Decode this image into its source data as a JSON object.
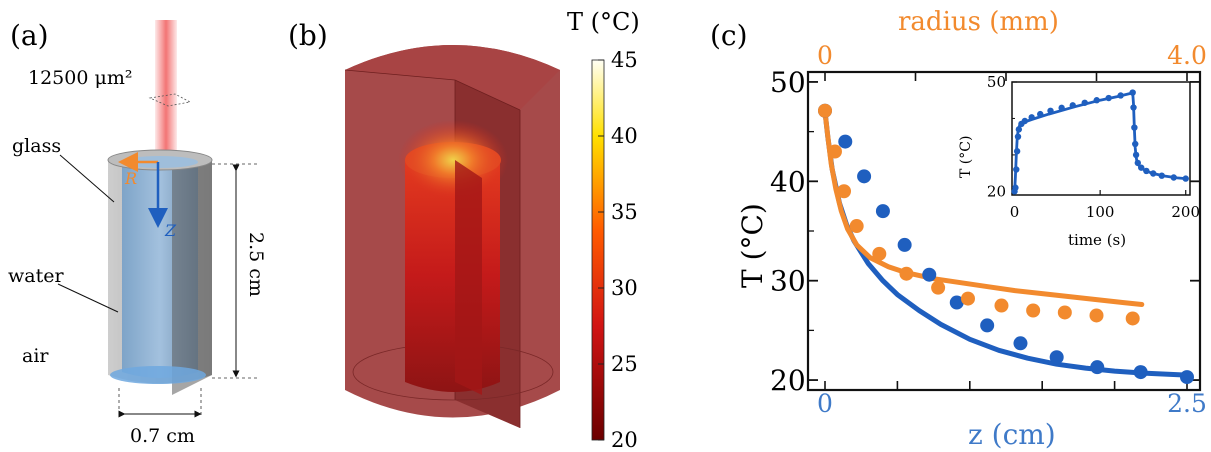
{
  "panel_a": {
    "label": "(a)",
    "area_label": "12500 μm²",
    "glass_label": "glass",
    "water_label": "water",
    "air_label": "air",
    "r_axis_label": "R",
    "z_axis_label": "Z",
    "height_label": "2.5 cm",
    "width_label": "0.7 cm",
    "colors": {
      "laser": "#f26d6d",
      "water": "#8db3d6",
      "glass": "#9a9a9a",
      "r_arrow": "#f28a2e",
      "z_arrow": "#1f5fbf"
    }
  },
  "panel_b": {
    "label": "(b)",
    "colorbar_title": "T (°C)",
    "colorbar_ticks": [
      "45",
      "40",
      "35",
      "30",
      "25",
      "20"
    ],
    "colors": {
      "outer": "#9e3b3b",
      "hot": "#e8c43a",
      "core": "#d81f1f"
    }
  },
  "panel_c": {
    "label": "(c)",
    "top_axis_label": "radius (mm)",
    "bottom_axis_label": "z (cm)",
    "y_axis_label": "T (°C)",
    "top_ticks": [
      "0",
      "4.0"
    ],
    "bottom_ticks": [
      "0",
      "2.5"
    ],
    "y_ticks": [
      "50",
      "40",
      "30",
      "20"
    ],
    "inset": {
      "y_label": "T (°C)",
      "x_label": "time (s)",
      "x_ticks": [
        "0",
        "100",
        "200"
      ],
      "y_ticks": [
        "50",
        "20"
      ]
    },
    "colors": {
      "blue": "#1f5fbf",
      "orange": "#f28a2e"
    }
  },
  "chart_data": [
    {
      "type": "scatter",
      "xlabel": "z (cm)",
      "x2label": "radius (mm)",
      "ylabel": "T (°C)",
      "xlim": [
        0,
        2.5
      ],
      "x2lim": [
        0,
        4.0
      ],
      "ylim": [
        19,
        51
      ],
      "series": [
        {
          "axis": "bottom",
          "kind": "points",
          "x": [
            0.0,
            0.14,
            0.27,
            0.4,
            0.55,
            0.72,
            0.91,
            1.12,
            1.35,
            1.6,
            1.88,
            2.18,
            2.5
          ],
          "y": [
            47.1,
            44.0,
            40.5,
            37.0,
            33.6,
            30.6,
            27.8,
            25.5,
            23.7,
            22.3,
            21.3,
            20.8,
            20.3
          ]
        },
        {
          "axis": "bottom",
          "kind": "fit",
          "x": [
            0.0,
            0.02,
            0.05,
            0.1,
            0.15,
            0.2,
            0.3,
            0.4,
            0.5,
            0.65,
            0.8,
            1.0,
            1.2,
            1.4,
            1.6,
            1.8,
            2.0,
            2.2,
            2.35,
            2.5
          ],
          "y": [
            47.0,
            44.4,
            41.2,
            37.8,
            35.6,
            34.0,
            31.7,
            30.0,
            28.6,
            27.0,
            25.6,
            24.1,
            23.0,
            22.2,
            21.6,
            21.2,
            20.9,
            20.7,
            20.6,
            20.5
          ]
        },
        {
          "axis": "top",
          "kind": "points",
          "x": [
            0.0,
            0.11,
            0.21,
            0.35,
            0.6,
            0.9,
            1.25,
            1.58,
            1.95,
            2.3,
            2.65,
            3.0,
            3.4
          ],
          "y": [
            47.1,
            43.0,
            39.0,
            35.5,
            32.7,
            30.7,
            29.3,
            28.2,
            27.5,
            27.0,
            26.8,
            26.5,
            26.2
          ]
        },
        {
          "axis": "top",
          "kind": "fit",
          "x": [
            0.0,
            0.03,
            0.07,
            0.12,
            0.18,
            0.25,
            0.35,
            0.5,
            0.7,
            0.9,
            1.2,
            1.5,
            1.8,
            2.1,
            2.4,
            2.7,
            3.0,
            3.3,
            3.5
          ],
          "y": [
            47.0,
            44.6,
            41.7,
            39.2,
            37.0,
            35.2,
            33.6,
            32.3,
            31.4,
            30.8,
            30.2,
            29.8,
            29.4,
            29.0,
            28.7,
            28.4,
            28.1,
            27.8,
            27.6
          ]
        }
      ]
    },
    {
      "type": "line",
      "xlabel": "time (s)",
      "ylabel": "T (°C)",
      "xlim": [
        -3,
        205
      ],
      "ylim": [
        19,
        50
      ],
      "series": [
        {
          "kind": "points",
          "x": [
            0,
            1,
            2,
            3,
            4,
            5,
            8,
            12,
            20,
            30,
            42,
            55,
            68,
            82,
            96,
            110,
            124,
            138,
            139,
            140,
            141,
            142,
            144,
            148,
            154,
            162,
            172,
            186,
            200
          ],
          "y": [
            20,
            21,
            26,
            31,
            35,
            37,
            38.5,
            39.3,
            40.3,
            41.2,
            42.1,
            42.9,
            43.6,
            44.3,
            45.0,
            45.6,
            46.3,
            47.1,
            43,
            37.5,
            33,
            30,
            27.8,
            26.5,
            25.6,
            24.9,
            24.3,
            23.8,
            23.5
          ]
        },
        {
          "kind": "fit",
          "x": [
            0,
            1,
            2,
            3,
            4,
            6,
            10,
            20,
            40,
            70,
            100,
            120,
            138,
            139,
            140,
            141,
            142,
            143,
            145,
            150,
            160,
            175,
            190,
            200
          ],
          "y": [
            20,
            24,
            30,
            34,
            36.5,
            38.2,
            38.9,
            39.7,
            41.2,
            43.2,
            45.0,
            46.0,
            47.0,
            44,
            37,
            32,
            29.5,
            28.3,
            27.2,
            26.1,
            25.0,
            24.2,
            23.7,
            23.5
          ]
        }
      ]
    }
  ]
}
